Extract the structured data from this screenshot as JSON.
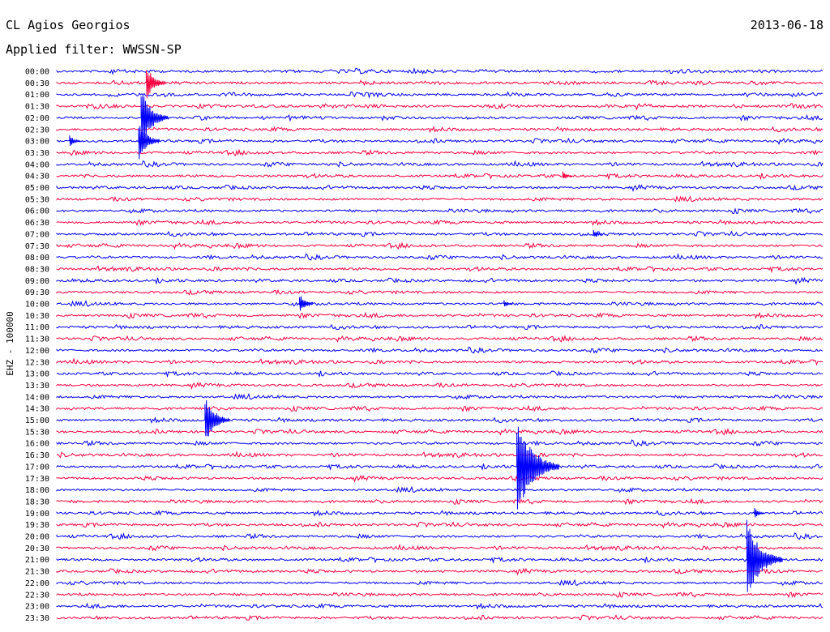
{
  "header": {
    "station": "CL Agios Georgios",
    "date": "2013-06-18",
    "filter": "Applied filter: WWSSN-SP",
    "channel_label": "EHZ - 100000"
  },
  "chart_data": {
    "type": "line",
    "title": "CL Agios Georgios",
    "ylabel": "EHZ - 100000",
    "row_labels": [
      "00:00",
      "00:30",
      "01:00",
      "01:30",
      "02:00",
      "02:30",
      "03:00",
      "03:30",
      "04:00",
      "04:30",
      "05:00",
      "05:30",
      "06:00",
      "06:30",
      "07:00",
      "07:30",
      "08:00",
      "08:30",
      "09:00",
      "09:30",
      "10:00",
      "10:30",
      "11:00",
      "11:30",
      "12:00",
      "12:30",
      "13:00",
      "13:30",
      "14:00",
      "14:30",
      "15:00",
      "15:30",
      "16:00",
      "16:30",
      "17:00",
      "17:30",
      "18:00",
      "18:30",
      "19:00",
      "19:30",
      "20:00",
      "20:30",
      "21:00",
      "21:30",
      "22:00",
      "22:30",
      "23:00",
      "23:30"
    ],
    "row_colors": [
      "#0000ff",
      "#ff0040"
    ],
    "grid": false,
    "events": [
      {
        "row": "00:30",
        "minute": 3.5,
        "amplitude": 1.6
      },
      {
        "row": "02:00",
        "minute": 3.3,
        "amplitude": 2.5
      },
      {
        "row": "03:00",
        "minute": 3.2,
        "amplitude": 1.8
      },
      {
        "row": "03:00",
        "minute": 0.5,
        "amplitude": 0.6
      },
      {
        "row": "10:00",
        "minute": 9.5,
        "amplitude": 0.9
      },
      {
        "row": "15:00",
        "minute": 5.8,
        "amplitude": 2.2
      },
      {
        "row": "17:00",
        "minute": 18.0,
        "amplitude": 4.2
      },
      {
        "row": "21:00",
        "minute": 27.0,
        "amplitude": 3.5
      },
      {
        "row": "19:00",
        "minute": 27.3,
        "amplitude": 0.5
      },
      {
        "row": "07:00",
        "minute": 21.0,
        "amplitude": 0.4
      },
      {
        "row": "04:30",
        "minute": 19.8,
        "amplitude": 0.4
      },
      {
        "row": "10:00",
        "minute": 17.5,
        "amplitude": 0.35
      }
    ]
  }
}
